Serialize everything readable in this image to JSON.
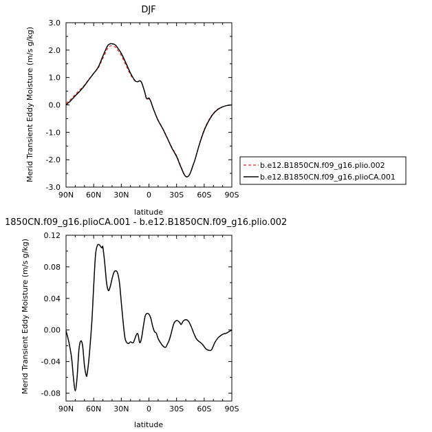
{
  "chart_data": [
    {
      "type": "line",
      "title": "DJF",
      "xlabel": "latitude",
      "ylabel": "Merid Transient Eddy Moisture  (m/s g/kg)",
      "x_tick_labels": [
        "90N",
        "60N",
        "30N",
        "0",
        "30S",
        "60S",
        "90S"
      ],
      "x_ticks": [
        90,
        60,
        30,
        0,
        -30,
        -60,
        -90
      ],
      "xlim": [
        90,
        -90
      ],
      "y_tick_labels": [
        "3.0",
        "2.0",
        "1.0",
        "0.0",
        "-1.0",
        "-2.0",
        "-3.0"
      ],
      "y_ticks": [
        3,
        2,
        1,
        0,
        -1,
        -2,
        -3
      ],
      "ylim": [
        -3.0,
        3.0
      ],
      "legend_position": "right",
      "series": [
        {
          "name": "b.e12.B1850CN.f09_g16.plio.002",
          "color": "#e8261e",
          "dash": "dashed",
          "x": [
            90,
            85,
            80,
            75,
            70,
            65,
            60,
            55,
            50,
            45,
            42,
            40,
            37,
            35,
            30,
            25,
            20,
            15,
            12,
            10,
            8,
            5,
            3,
            2,
            0,
            -2,
            -5,
            -10,
            -15,
            -20,
            -25,
            -30,
            -33,
            -36,
            -38,
            -40,
            -42,
            -44,
            -46,
            -48,
            -50,
            -55,
            -60,
            -65,
            -70,
            -75,
            -80,
            -85,
            -90
          ],
          "y": [
            0.05,
            0.2,
            0.38,
            0.55,
            0.72,
            0.95,
            1.15,
            1.35,
            1.7,
            2.05,
            2.15,
            2.15,
            2.12,
            2.05,
            1.8,
            1.45,
            1.1,
            0.87,
            0.85,
            0.88,
            0.82,
            0.5,
            0.25,
            0.2,
            0.22,
            0.12,
            -0.15,
            -0.55,
            -0.85,
            -1.2,
            -1.55,
            -1.85,
            -2.1,
            -2.35,
            -2.5,
            -2.6,
            -2.62,
            -2.55,
            -2.4,
            -2.2,
            -2.0,
            -1.4,
            -0.9,
            -0.55,
            -0.3,
            -0.15,
            -0.07,
            -0.02,
            0.0
          ]
        },
        {
          "name": "b.e12.B1850CN.f09_g16.plioCA.001",
          "color": "#000000",
          "dash": "solid",
          "x": [
            90,
            85,
            80,
            75,
            70,
            65,
            60,
            55,
            50,
            45,
            42,
            40,
            37,
            35,
            30,
            25,
            20,
            15,
            12,
            10,
            8,
            5,
            3,
            2,
            0,
            -2,
            -5,
            -10,
            -15,
            -20,
            -25,
            -30,
            -33,
            -36,
            -38,
            -40,
            -42,
            -44,
            -46,
            -48,
            -50,
            -55,
            -60,
            -65,
            -70,
            -75,
            -80,
            -85,
            -90
          ],
          "y": [
            0.0,
            0.15,
            0.33,
            0.5,
            0.7,
            0.93,
            1.15,
            1.38,
            1.78,
            2.15,
            2.23,
            2.23,
            2.2,
            2.13,
            1.88,
            1.53,
            1.16,
            0.88,
            0.85,
            0.88,
            0.82,
            0.52,
            0.27,
            0.22,
            0.25,
            0.13,
            -0.16,
            -0.57,
            -0.87,
            -1.22,
            -1.58,
            -1.88,
            -2.13,
            -2.37,
            -2.52,
            -2.61,
            -2.62,
            -2.55,
            -2.39,
            -2.19,
            -2.0,
            -1.42,
            -0.93,
            -0.58,
            -0.32,
            -0.16,
            -0.07,
            -0.02,
            0.0
          ]
        }
      ]
    },
    {
      "type": "line",
      "title": "1850CN.f09_g16.plioCA.001 - b.e12.B1850CN.f09_g16.plio.002",
      "xlabel": "latitude",
      "ylabel": "Merid Transient Eddy Moisture  (m/s g/kg)",
      "x_tick_labels": [
        "90N",
        "60N",
        "30N",
        "0",
        "30S",
        "60S",
        "90S"
      ],
      "x_ticks": [
        90,
        60,
        30,
        0,
        -30,
        -60,
        -90
      ],
      "xlim": [
        90,
        -90
      ],
      "y_tick_labels": [
        "0.12",
        "0.08",
        "0.04",
        "0.00",
        "-0.04",
        "-0.08"
      ],
      "y_ticks": [
        0.12,
        0.08,
        0.04,
        0.0,
        -0.04,
        -0.08
      ],
      "ylim": [
        -0.09,
        0.12
      ],
      "series": [
        {
          "color": "#000000",
          "dash": "solid",
          "x": [
            90,
            87,
            84,
            82,
            80,
            78,
            76,
            74,
            72,
            70,
            68,
            67,
            65,
            62,
            60,
            58,
            56,
            54,
            52,
            51,
            50,
            48,
            46,
            44,
            42,
            40,
            38,
            36,
            34,
            32,
            30,
            28,
            26,
            24,
            22,
            20,
            17,
            14,
            12,
            10,
            8,
            6,
            4,
            2,
            0,
            -2,
            -4,
            -6,
            -8,
            -10,
            -12,
            -15,
            -18,
            -20,
            -22,
            -24,
            -27,
            -30,
            -33,
            -35,
            -37,
            -40,
            -43,
            -46,
            -49,
            -52,
            -55,
            -58,
            -62,
            -66,
            -68,
            -70,
            -72,
            -75,
            -78,
            -81,
            -84,
            -87,
            -90
          ],
          "y": [
            -0.001,
            -0.015,
            -0.035,
            -0.06,
            -0.077,
            -0.06,
            -0.025,
            -0.014,
            -0.02,
            -0.045,
            -0.058,
            -0.055,
            -0.035,
            0.01,
            0.055,
            0.095,
            0.107,
            0.108,
            0.105,
            0.104,
            0.105,
            0.085,
            0.06,
            0.05,
            0.055,
            0.065,
            0.073,
            0.075,
            0.072,
            0.06,
            0.035,
            0.01,
            -0.01,
            -0.016,
            -0.017,
            -0.015,
            -0.016,
            -0.007,
            -0.005,
            -0.016,
            -0.01,
            0.005,
            0.018,
            0.021,
            0.02,
            0.015,
            0.005,
            -0.002,
            -0.004,
            -0.011,
            -0.015,
            -0.02,
            -0.022,
            -0.018,
            -0.013,
            -0.005,
            0.008,
            0.012,
            0.01,
            0.007,
            0.011,
            0.013,
            0.011,
            0.004,
            -0.005,
            -0.012,
            -0.015,
            -0.018,
            -0.024,
            -0.026,
            -0.025,
            -0.02,
            -0.015,
            -0.01,
            -0.007,
            -0.005,
            -0.004,
            -0.002,
            0.0
          ]
        }
      ]
    }
  ]
}
